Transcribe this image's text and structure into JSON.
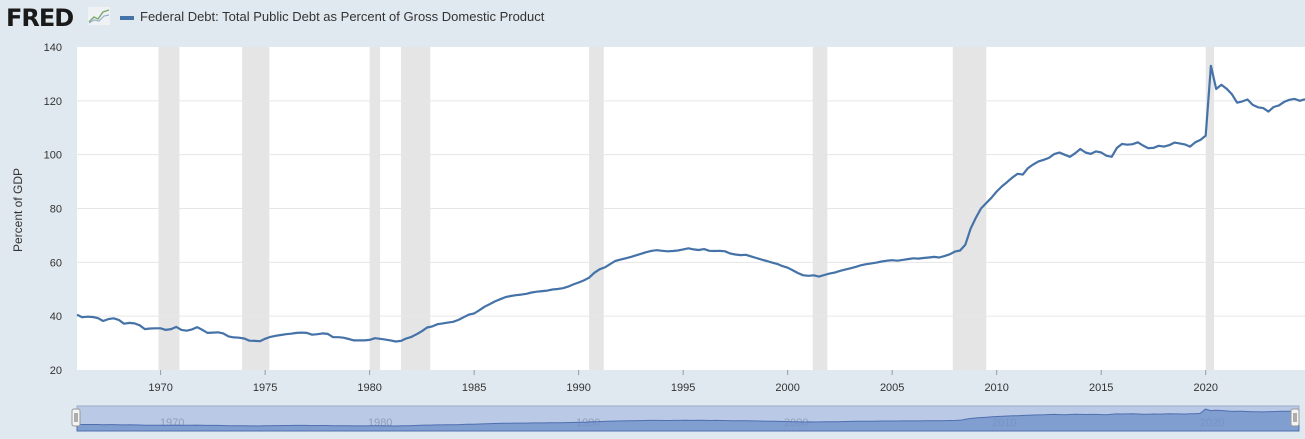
{
  "header": {
    "logo_text": "FRED",
    "legend_label": "Federal Debt: Total Public Debt as Percent of Gross Domestic Product"
  },
  "colors": {
    "series": "#4572a7",
    "recession": "#e5e5e5",
    "background": "#e1e9f0"
  },
  "icons": {
    "logo_chart": "chart-line-icon",
    "handle": "drag-handle-icon"
  },
  "chart_data": {
    "type": "line",
    "title": "",
    "xlabel": "",
    "ylabel": "Percent of GDP",
    "ylim": [
      20,
      140
    ],
    "xlim": [
      1966.0,
      2024.75
    ],
    "yticks": [
      20,
      40,
      60,
      80,
      100,
      120,
      140
    ],
    "xticks": [
      1970,
      1975,
      1980,
      1985,
      1990,
      1995,
      2000,
      2005,
      2010,
      2015,
      2020
    ],
    "navigator_ticks": [
      1970,
      1980,
      1990,
      2000,
      2010,
      2020
    ],
    "grid": "horizontal",
    "recessions": [
      [
        1969.9,
        1970.9
      ],
      [
        1973.9,
        1975.2
      ],
      [
        1980.0,
        1980.5
      ],
      [
        1981.5,
        1982.9
      ],
      [
        1990.5,
        1991.2
      ],
      [
        2001.2,
        2001.9
      ],
      [
        2007.9,
        2009.5
      ],
      [
        2020.0,
        2020.4
      ]
    ],
    "series": [
      {
        "name": "Federal Debt: Total Public Debt as Percent of Gross Domestic Product",
        "points": [
          [
            1966.0,
            40.5
          ],
          [
            1966.25,
            39.6
          ],
          [
            1966.5,
            39.8
          ],
          [
            1966.75,
            39.7
          ],
          [
            1967.0,
            39.3
          ],
          [
            1967.25,
            38.2
          ],
          [
            1967.5,
            38.9
          ],
          [
            1967.75,
            39.2
          ],
          [
            1968.0,
            38.6
          ],
          [
            1968.25,
            37.2
          ],
          [
            1968.5,
            37.5
          ],
          [
            1968.75,
            37.3
          ],
          [
            1969.0,
            36.6
          ],
          [
            1969.25,
            35.2
          ],
          [
            1969.5,
            35.4
          ],
          [
            1969.75,
            35.5
          ],
          [
            1970.0,
            35.5
          ],
          [
            1970.25,
            34.9
          ],
          [
            1970.5,
            35.2
          ],
          [
            1970.75,
            36.0
          ],
          [
            1971.0,
            34.9
          ],
          [
            1971.25,
            34.6
          ],
          [
            1971.5,
            35.1
          ],
          [
            1971.75,
            35.9
          ],
          [
            1972.0,
            34.9
          ],
          [
            1972.25,
            33.8
          ],
          [
            1972.5,
            33.9
          ],
          [
            1972.75,
            34.0
          ],
          [
            1973.0,
            33.6
          ],
          [
            1973.25,
            32.5
          ],
          [
            1973.5,
            32.1
          ],
          [
            1973.75,
            32.0
          ],
          [
            1974.0,
            31.7
          ],
          [
            1974.25,
            30.9
          ],
          [
            1974.5,
            30.8
          ],
          [
            1974.75,
            30.7
          ],
          [
            1975.0,
            31.6
          ],
          [
            1975.25,
            32.3
          ],
          [
            1975.5,
            32.7
          ],
          [
            1975.75,
            33.0
          ],
          [
            1976.0,
            33.3
          ],
          [
            1976.25,
            33.5
          ],
          [
            1976.5,
            33.8
          ],
          [
            1976.75,
            33.9
          ],
          [
            1977.0,
            33.8
          ],
          [
            1977.25,
            33.1
          ],
          [
            1977.5,
            33.3
          ],
          [
            1977.75,
            33.6
          ],
          [
            1978.0,
            33.4
          ],
          [
            1978.25,
            32.2
          ],
          [
            1978.5,
            32.2
          ],
          [
            1978.75,
            32.0
          ],
          [
            1979.0,
            31.5
          ],
          [
            1979.25,
            31.0
          ],
          [
            1979.5,
            31.0
          ],
          [
            1979.75,
            31.0
          ],
          [
            1980.0,
            31.2
          ],
          [
            1980.25,
            31.8
          ],
          [
            1980.5,
            31.6
          ],
          [
            1980.75,
            31.3
          ],
          [
            1981.0,
            31.0
          ],
          [
            1981.25,
            30.6
          ],
          [
            1981.5,
            30.8
          ],
          [
            1981.75,
            31.7
          ],
          [
            1982.0,
            32.3
          ],
          [
            1982.25,
            33.3
          ],
          [
            1982.5,
            34.4
          ],
          [
            1982.75,
            35.8
          ],
          [
            1983.0,
            36.2
          ],
          [
            1983.25,
            37.0
          ],
          [
            1983.5,
            37.3
          ],
          [
            1983.75,
            37.6
          ],
          [
            1984.0,
            37.9
          ],
          [
            1984.25,
            38.6
          ],
          [
            1984.5,
            39.6
          ],
          [
            1984.75,
            40.6
          ],
          [
            1985.0,
            41.0
          ],
          [
            1985.25,
            42.2
          ],
          [
            1985.5,
            43.5
          ],
          [
            1985.75,
            44.5
          ],
          [
            1986.0,
            45.5
          ],
          [
            1986.25,
            46.3
          ],
          [
            1986.5,
            47.1
          ],
          [
            1986.75,
            47.5
          ],
          [
            1987.0,
            47.8
          ],
          [
            1987.25,
            48.0
          ],
          [
            1987.5,
            48.3
          ],
          [
            1987.75,
            48.8
          ],
          [
            1988.0,
            49.1
          ],
          [
            1988.25,
            49.3
          ],
          [
            1988.5,
            49.5
          ],
          [
            1988.75,
            49.9
          ],
          [
            1989.0,
            50.1
          ],
          [
            1989.25,
            50.4
          ],
          [
            1989.5,
            51.0
          ],
          [
            1989.75,
            51.8
          ],
          [
            1990.0,
            52.5
          ],
          [
            1990.25,
            53.3
          ],
          [
            1990.5,
            54.3
          ],
          [
            1990.75,
            56.1
          ],
          [
            1991.0,
            57.4
          ],
          [
            1991.25,
            58.1
          ],
          [
            1991.5,
            59.3
          ],
          [
            1991.75,
            60.5
          ],
          [
            1992.0,
            61.0
          ],
          [
            1992.25,
            61.5
          ],
          [
            1992.5,
            62.0
          ],
          [
            1992.75,
            62.6
          ],
          [
            1993.0,
            63.2
          ],
          [
            1993.25,
            63.8
          ],
          [
            1993.5,
            64.3
          ],
          [
            1993.75,
            64.5
          ],
          [
            1994.0,
            64.3
          ],
          [
            1994.25,
            64.1
          ],
          [
            1994.5,
            64.2
          ],
          [
            1994.75,
            64.4
          ],
          [
            1995.0,
            64.8
          ],
          [
            1995.25,
            65.2
          ],
          [
            1995.5,
            64.8
          ],
          [
            1995.75,
            64.6
          ],
          [
            1996.0,
            64.9
          ],
          [
            1996.25,
            64.3
          ],
          [
            1996.5,
            64.2
          ],
          [
            1996.75,
            64.3
          ],
          [
            1997.0,
            64.1
          ],
          [
            1997.25,
            63.3
          ],
          [
            1997.5,
            62.9
          ],
          [
            1997.75,
            62.7
          ],
          [
            1998.0,
            62.8
          ],
          [
            1998.25,
            62.2
          ],
          [
            1998.5,
            61.6
          ],
          [
            1998.75,
            61.0
          ],
          [
            1999.0,
            60.5
          ],
          [
            1999.25,
            59.9
          ],
          [
            1999.5,
            59.4
          ],
          [
            1999.75,
            58.6
          ],
          [
            2000.0,
            58.0
          ],
          [
            2000.25,
            57.0
          ],
          [
            2000.5,
            56.0
          ],
          [
            2000.75,
            55.2
          ],
          [
            2001.0,
            55.0
          ],
          [
            2001.25,
            55.2
          ],
          [
            2001.5,
            54.7
          ],
          [
            2001.75,
            55.3
          ],
          [
            2002.0,
            55.8
          ],
          [
            2002.25,
            56.2
          ],
          [
            2002.5,
            56.8
          ],
          [
            2002.75,
            57.3
          ],
          [
            2003.0,
            57.8
          ],
          [
            2003.25,
            58.3
          ],
          [
            2003.5,
            58.9
          ],
          [
            2003.75,
            59.3
          ],
          [
            2004.0,
            59.6
          ],
          [
            2004.25,
            59.9
          ],
          [
            2004.5,
            60.3
          ],
          [
            2004.75,
            60.6
          ],
          [
            2005.0,
            60.8
          ],
          [
            2005.25,
            60.6
          ],
          [
            2005.5,
            60.9
          ],
          [
            2005.75,
            61.2
          ],
          [
            2006.0,
            61.5
          ],
          [
            2006.25,
            61.4
          ],
          [
            2006.5,
            61.6
          ],
          [
            2006.75,
            61.8
          ],
          [
            2007.0,
            62.0
          ],
          [
            2007.25,
            61.8
          ],
          [
            2007.5,
            62.3
          ],
          [
            2007.75,
            63.0
          ],
          [
            2008.0,
            64.0
          ],
          [
            2008.25,
            64.4
          ],
          [
            2008.5,
            66.5
          ],
          [
            2008.75,
            72.5
          ],
          [
            2009.0,
            76.5
          ],
          [
            2009.25,
            80.0
          ],
          [
            2009.5,
            82.0
          ],
          [
            2009.75,
            84.0
          ],
          [
            2010.0,
            86.3
          ],
          [
            2010.25,
            88.2
          ],
          [
            2010.5,
            89.8
          ],
          [
            2010.75,
            91.5
          ],
          [
            2011.0,
            92.9
          ],
          [
            2011.25,
            92.6
          ],
          [
            2011.5,
            95.0
          ],
          [
            2011.75,
            96.4
          ],
          [
            2012.0,
            97.5
          ],
          [
            2012.25,
            98.1
          ],
          [
            2012.5,
            98.8
          ],
          [
            2012.75,
            100.2
          ],
          [
            2013.0,
            100.8
          ],
          [
            2013.25,
            100.0
          ],
          [
            2013.5,
            99.2
          ],
          [
            2013.75,
            100.5
          ],
          [
            2014.0,
            102.1
          ],
          [
            2014.25,
            100.8
          ],
          [
            2014.5,
            100.3
          ],
          [
            2014.75,
            101.2
          ],
          [
            2015.0,
            100.8
          ],
          [
            2015.25,
            99.6
          ],
          [
            2015.5,
            99.2
          ],
          [
            2015.75,
            102.5
          ],
          [
            2016.0,
            104.0
          ],
          [
            2016.25,
            103.7
          ],
          [
            2016.5,
            103.9
          ],
          [
            2016.75,
            104.6
          ],
          [
            2017.0,
            103.4
          ],
          [
            2017.25,
            102.4
          ],
          [
            2017.5,
            102.5
          ],
          [
            2017.75,
            103.3
          ],
          [
            2018.0,
            103.0
          ],
          [
            2018.25,
            103.5
          ],
          [
            2018.5,
            104.5
          ],
          [
            2018.75,
            104.2
          ],
          [
            2019.0,
            103.8
          ],
          [
            2019.25,
            103.0
          ],
          [
            2019.5,
            104.6
          ],
          [
            2019.75,
            105.5
          ],
          [
            2020.0,
            107.1
          ],
          [
            2020.25,
            133.0
          ],
          [
            2020.5,
            124.4
          ],
          [
            2020.75,
            126.0
          ],
          [
            2021.0,
            124.5
          ],
          [
            2021.25,
            122.5
          ],
          [
            2021.5,
            119.3
          ],
          [
            2021.75,
            119.8
          ],
          [
            2022.0,
            120.5
          ],
          [
            2022.25,
            118.5
          ],
          [
            2022.5,
            117.6
          ],
          [
            2022.75,
            117.3
          ],
          [
            2023.0,
            116.0
          ],
          [
            2023.25,
            117.7
          ],
          [
            2023.5,
            118.3
          ],
          [
            2023.75,
            119.6
          ],
          [
            2024.0,
            120.4
          ],
          [
            2024.25,
            120.7
          ],
          [
            2024.5,
            120.0
          ],
          [
            2024.75,
            120.6
          ]
        ]
      }
    ]
  }
}
